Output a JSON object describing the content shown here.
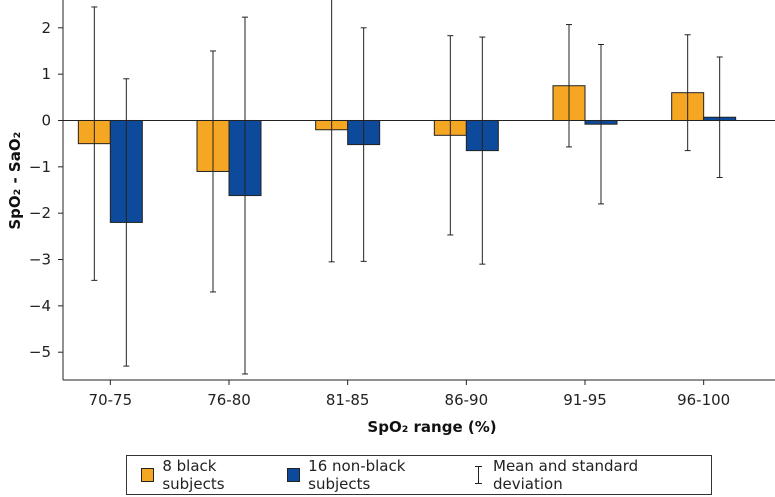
{
  "chart_data": {
    "type": "bar",
    "categories": [
      "70-75",
      "76-80",
      "81-85",
      "86-90",
      "91-95",
      "96-100"
    ],
    "series": [
      {
        "name": "8 black subjects",
        "color": "#F5A623",
        "values": [
          -0.5,
          -1.1,
          -0.2,
          -0.32,
          0.75,
          0.6
        ],
        "sd": [
          2.95,
          2.6,
          2.85,
          2.15,
          1.32,
          1.25
        ]
      },
      {
        "name": "16 non-black subjects",
        "color": "#0D4A9B",
        "values": [
          -2.2,
          -1.62,
          -0.52,
          -0.65,
          -0.08,
          0.07
        ],
        "sd": [
          3.1,
          3.85,
          2.52,
          2.45,
          1.72,
          1.3
        ]
      }
    ],
    "ylim": [
      -5.6,
      2.6
    ],
    "yticks": [
      2,
      1,
      0,
      -1,
      -2,
      -3,
      -4,
      -5
    ],
    "ytick_labels": [
      "2",
      "1",
      "0",
      "−1",
      "−2",
      "−3",
      "−4",
      "−5"
    ],
    "xlabel": "SpO₂ range (%)",
    "ylabel": "SpO₂ - SaO₂",
    "legend": {
      "position": "bottom",
      "black_label": "8 black subjects",
      "nonblack_label": "16 non-black subjects",
      "errorbar_label": "Mean and standard deviation"
    }
  }
}
